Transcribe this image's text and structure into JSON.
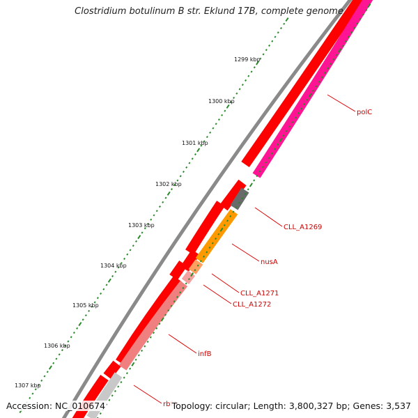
{
  "title": "Clostridium botulinum B str. Eklund 17B, complete genome",
  "footer": {
    "accession": "Accession: NC_010674",
    "summary": "Topology: circular; Length: 3,800,327 bp; Genes: 3,537"
  },
  "ticks": [
    "1299 kbp",
    "1300 kbp",
    "1301 kbp",
    "1302 kbp",
    "1303 kbp",
    "1304 kbp",
    "1305 kbp",
    "1306 kbp",
    "1307 kbp"
  ],
  "genes": [
    {
      "name": "polC",
      "color": "#ff1493"
    },
    {
      "name": "CLL_A1269",
      "color": "#666666"
    },
    {
      "name": "nusA",
      "color": "#ff9900"
    },
    {
      "name": "CLL_A1271",
      "color": "#ffa060"
    },
    {
      "name": "CLL_A1272",
      "color": "#f08888"
    },
    {
      "name": "infB",
      "color": "#f08080"
    },
    {
      "name": "rbfA",
      "color": "#c8c8c8"
    }
  ],
  "colors": {
    "backbone": "#888888",
    "cds_track": "#ff0000",
    "tick": "#2a8a2a",
    "label": "#cc0000"
  }
}
